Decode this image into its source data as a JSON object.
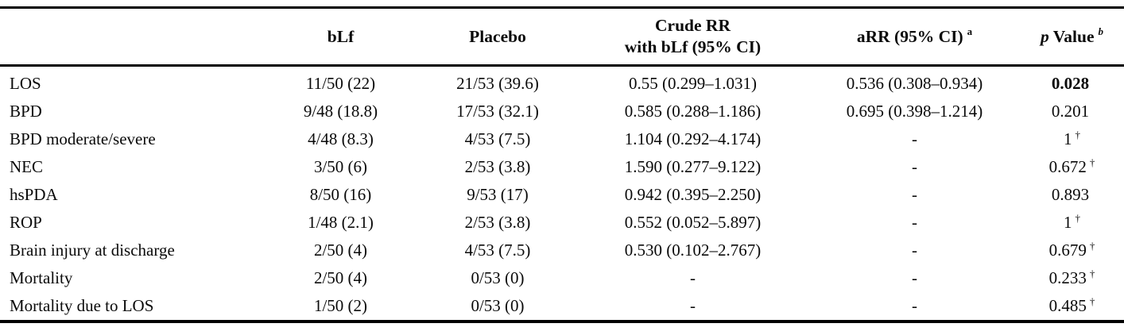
{
  "table": {
    "header": {
      "outcome": "",
      "blf": "bLf",
      "placebo": "Placebo",
      "crude_line1": "Crude RR",
      "crude_line2": "with bLf (95% CI)",
      "arr": "aRR (95% CI)",
      "arr_sup": "a",
      "p_italic": "p",
      "p_word": "Value",
      "p_sup": "b"
    },
    "rows": [
      {
        "cells": [
          {
            "v": "LOS"
          },
          {
            "v": "11/50 (22)"
          },
          {
            "v": "21/53 (39.6)"
          },
          {
            "v": "0.55 (0.299–1.031)"
          },
          {
            "v": "0.536 (0.308–0.934)"
          },
          {
            "v": "0.028"
          }
        ]
      },
      {
        "cells": [
          {
            "v": "BPD"
          },
          {
            "v": "9/48 (18.8)"
          },
          {
            "v": "17/53 (32.1)"
          },
          {
            "v": "0.585 (0.288–1.186)"
          },
          {
            "v": "0.695 (0.398–1.214)"
          },
          {
            "v": "0.201"
          }
        ]
      },
      {
        "cells": [
          {
            "v": "BPD moderate/severe"
          },
          {
            "v": "4/48 (8.3)"
          },
          {
            "v": "4/53 (7.5)"
          },
          {
            "v": "1.104 (0.292–4.174)"
          },
          {
            "v": "-"
          },
          {
            "v": "1",
            "sup": "†"
          }
        ]
      },
      {
        "cells": [
          {
            "v": "NEC"
          },
          {
            "v": "3/50 (6)"
          },
          {
            "v": "2/53 (3.8)"
          },
          {
            "v": "1.590 (0.277–9.122)"
          },
          {
            "v": "-"
          },
          {
            "v": "0.672",
            "sup": "†"
          }
        ]
      },
      {
        "cells": [
          {
            "v": "hsPDA"
          },
          {
            "v": "8/50 (16)"
          },
          {
            "v": "9/53 (17)"
          },
          {
            "v": "0.942 (0.395–2.250)"
          },
          {
            "v": "-"
          },
          {
            "v": "0.893"
          }
        ]
      },
      {
        "cells": [
          {
            "v": "ROP"
          },
          {
            "v": "1/48 (2.1)"
          },
          {
            "v": "2/53 (3.8)"
          },
          {
            "v": "0.552 (0.052–5.897)"
          },
          {
            "v": "-"
          },
          {
            "v": "1",
            "sup": "†"
          }
        ]
      },
      {
        "cells": [
          {
            "v": "Brain injury at discharge"
          },
          {
            "v": "2/50 (4)"
          },
          {
            "v": "4/53 (7.5)"
          },
          {
            "v": "0.530 (0.102–2.767)"
          },
          {
            "v": "-"
          },
          {
            "v": "0.679",
            "sup": "†"
          }
        ]
      },
      {
        "cells": [
          {
            "v": "Mortality"
          },
          {
            "v": "2/50 (4)"
          },
          {
            "v": "0/53 (0)"
          },
          {
            "v": "-"
          },
          {
            "v": "-"
          },
          {
            "v": "0.233",
            "sup": "†"
          }
        ]
      },
      {
        "cells": [
          {
            "v": "Mortality due to LOS"
          },
          {
            "v": "1/50 (2)"
          },
          {
            "v": "0/53 (0)"
          },
          {
            "v": "-"
          },
          {
            "v": "-"
          },
          {
            "v": "0.485",
            "sup": "†"
          }
        ]
      }
    ],
    "colors": {
      "rule": "#000000",
      "text": "#0a0a0a"
    }
  }
}
